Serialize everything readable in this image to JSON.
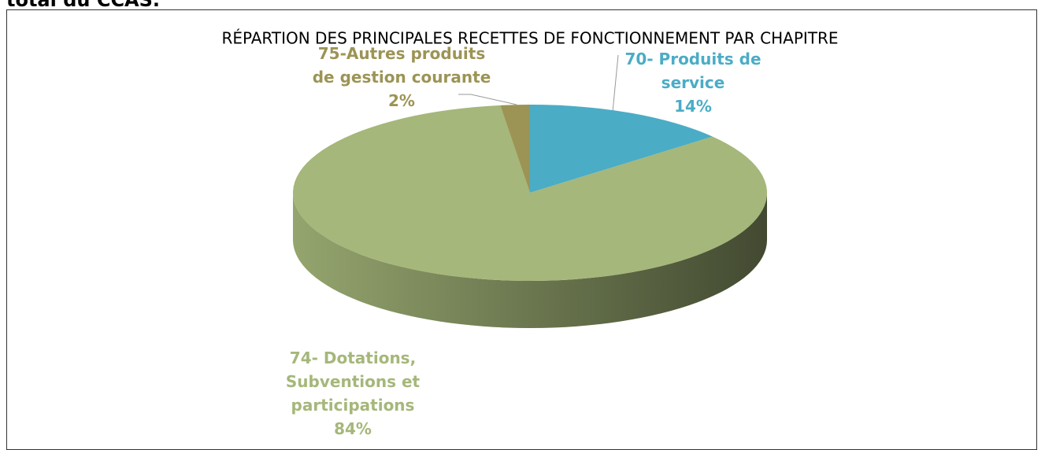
{
  "caption": "total du CCAS.",
  "chart_data": {
    "type": "pie",
    "title": "RÉPARTION DES PRINCIPALES RECETTES DE FONCTIONNEMENT PAR CHAPITRE",
    "categories": [
      "70- Produits de service",
      "74- Dotations, Subventions et participations",
      "75-Autres produits de gestion courante"
    ],
    "values": [
      14,
      84,
      2
    ],
    "value_labels": [
      "14%",
      "84%",
      "2%"
    ],
    "colors": [
      "#4bacc6",
      "#a5b77a",
      "#9c9455"
    ]
  }
}
